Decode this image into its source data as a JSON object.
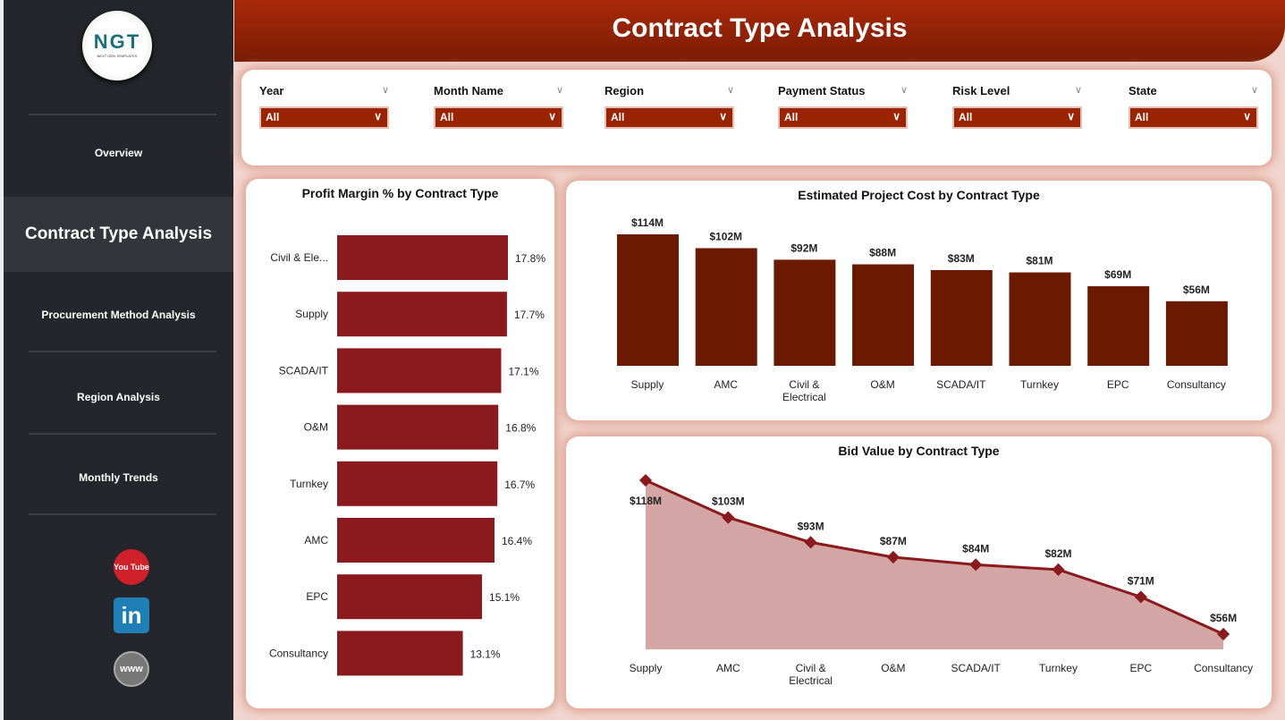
{
  "sidebar": {
    "logo": "NGT",
    "logo_sub": "NEXT GEN TEMPLATES",
    "items": [
      {
        "label": "Overview"
      },
      {
        "label": "Contract Type Analysis"
      },
      {
        "label": "Procurement Method Analysis"
      },
      {
        "label": "Region Analysis"
      },
      {
        "label": "Monthly Trends"
      }
    ],
    "social": [
      "youtube-icon",
      "linkedin-icon",
      "website-icon"
    ],
    "social_text": {
      "youtube": "You Tube",
      "linkedin": "in",
      "web": "www"
    }
  },
  "header": {
    "title": "Contract Type Analysis"
  },
  "filters": [
    {
      "label": "Year",
      "value": "All"
    },
    {
      "label": "Month Name",
      "value": "All"
    },
    {
      "label": "Region",
      "value": "All"
    },
    {
      "label": "Payment Status",
      "value": "All"
    },
    {
      "label": "Risk Level",
      "value": "All"
    },
    {
      "label": "State",
      "value": "All"
    }
  ],
  "colors": {
    "accent": "#9a2400",
    "bar_profit": "#8b1a1e",
    "bar_cost": "#6b1a00",
    "area": "#d4a5a5",
    "line": "#8b1a1e"
  },
  "chart_data": [
    {
      "type": "bar",
      "orientation": "horizontal",
      "title": "Profit Margin % by Contract Type",
      "categories": [
        "Civil & Ele...",
        "Supply",
        "SCADA/IT",
        "O&M",
        "Turnkey",
        "AMC",
        "EPC",
        "Consultancy"
      ],
      "values": [
        17.8,
        17.7,
        17.1,
        16.8,
        16.7,
        16.4,
        15.1,
        13.1
      ],
      "labels": [
        "17.8%",
        "17.7%",
        "17.1%",
        "16.8%",
        "16.7%",
        "16.4%",
        "15.1%",
        "13.1%"
      ]
    },
    {
      "type": "bar",
      "title": "Estimated Project Cost by Contract Type",
      "categories": [
        "Supply",
        "AMC",
        "Civil & Electrical",
        "O&M",
        "SCADA/IT",
        "Turnkey",
        "EPC",
        "Consultancy"
      ],
      "values": [
        114,
        102,
        92,
        88,
        83,
        81,
        69,
        56
      ],
      "labels": [
        "$114M",
        "$102M",
        "$92M",
        "$88M",
        "$83M",
        "$81M",
        "$69M",
        "$56M"
      ]
    },
    {
      "type": "area",
      "title": "Bid Value by Contract Type",
      "categories": [
        "Supply",
        "AMC",
        "Civil & Electrical",
        "O&M",
        "SCADA/IT",
        "Turnkey",
        "EPC",
        "Consultancy"
      ],
      "values": [
        118,
        103,
        93,
        87,
        84,
        82,
        71,
        56
      ],
      "labels": [
        "$118M",
        "$103M",
        "$93M",
        "$87M",
        "$84M",
        "$82M",
        "$71M",
        "$56M"
      ]
    }
  ]
}
